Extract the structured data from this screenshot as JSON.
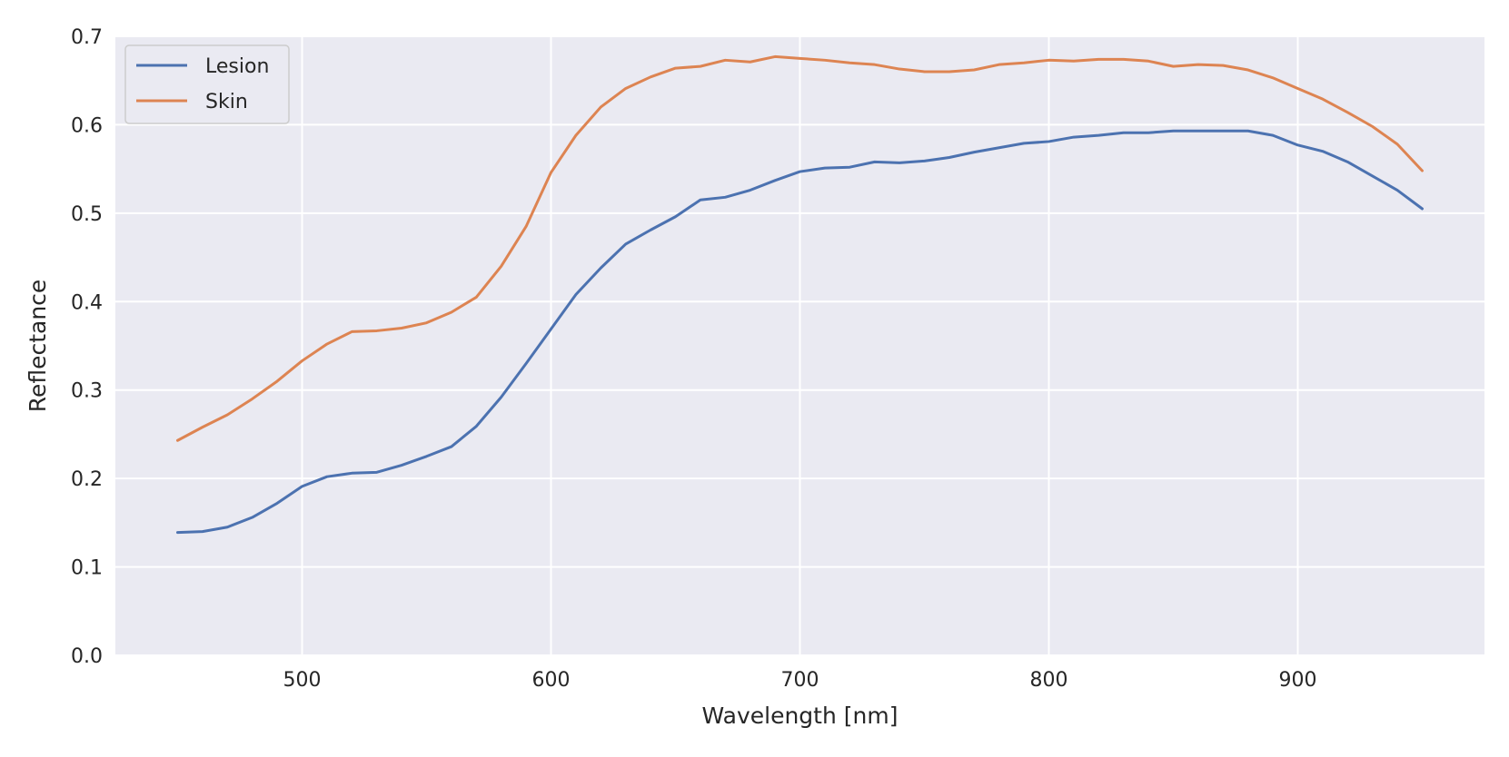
{
  "chart_data": {
    "type": "line",
    "title": "",
    "xlabel": "Wavelength [nm]",
    "ylabel": "Reflectance",
    "xlim": [
      425,
      975
    ],
    "ylim": [
      0.0,
      0.7
    ],
    "xticks": [
      500,
      600,
      700,
      800,
      900
    ],
    "xtick_labels": [
      "500",
      "600",
      "700",
      "800",
      "900"
    ],
    "yticks": [
      0.0,
      0.1,
      0.2,
      0.3,
      0.4,
      0.5,
      0.6,
      0.7
    ],
    "ytick_labels": [
      "0.0",
      "0.1",
      "0.2",
      "0.3",
      "0.4",
      "0.5",
      "0.6",
      "0.7"
    ],
    "grid": true,
    "legend_position": "top-left",
    "background_color": "#eaeaf2",
    "grid_color": "#ffffff",
    "x": [
      450,
      460,
      470,
      480,
      490,
      500,
      510,
      520,
      530,
      540,
      550,
      560,
      570,
      580,
      590,
      600,
      610,
      620,
      630,
      640,
      650,
      660,
      670,
      680,
      690,
      700,
      710,
      720,
      730,
      740,
      750,
      760,
      770,
      780,
      790,
      800,
      810,
      820,
      830,
      840,
      850,
      860,
      870,
      880,
      890,
      900,
      910,
      920,
      930,
      940,
      950
    ],
    "series": [
      {
        "name": "Lesion",
        "color": "#4c72b0",
        "values": [
          0.139,
          0.14,
          0.145,
          0.156,
          0.172,
          0.191,
          0.202,
          0.206,
          0.207,
          0.215,
          0.225,
          0.236,
          0.259,
          0.292,
          0.33,
          0.369,
          0.408,
          0.438,
          0.465,
          0.481,
          0.496,
          0.515,
          0.518,
          0.526,
          0.537,
          0.547,
          0.551,
          0.552,
          0.558,
          0.557,
          0.559,
          0.563,
          0.569,
          0.574,
          0.579,
          0.581,
          0.586,
          0.588,
          0.591,
          0.591,
          0.593,
          0.593,
          0.593,
          0.593,
          0.588,
          0.577,
          0.57,
          0.558,
          0.542,
          0.526,
          0.505
        ]
      },
      {
        "name": "Skin",
        "color": "#dd8452",
        "values": [
          0.243,
          0.258,
          0.272,
          0.29,
          0.31,
          0.333,
          0.352,
          0.366,
          0.367,
          0.37,
          0.376,
          0.388,
          0.405,
          0.44,
          0.485,
          0.546,
          0.588,
          0.62,
          0.641,
          0.654,
          0.664,
          0.666,
          0.673,
          0.671,
          0.677,
          0.675,
          0.673,
          0.67,
          0.668,
          0.663,
          0.66,
          0.66,
          0.662,
          0.668,
          0.67,
          0.673,
          0.672,
          0.674,
          0.674,
          0.672,
          0.666,
          0.668,
          0.667,
          0.662,
          0.653,
          0.641,
          0.629,
          0.614,
          0.598,
          0.578,
          0.548
        ]
      }
    ]
  }
}
